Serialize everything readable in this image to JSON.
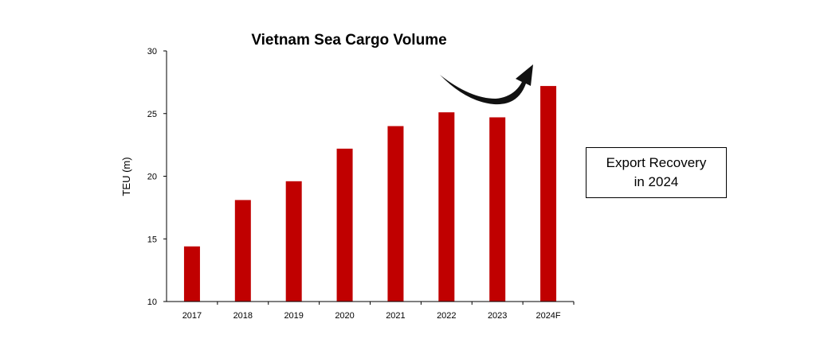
{
  "chart_data": {
    "type": "bar",
    "title": "Vietnam Sea Cargo Volume",
    "xlabel": "",
    "ylabel": "TEU (m)",
    "categories": [
      "2017",
      "2018",
      "2019",
      "2020",
      "2021",
      "2022",
      "2023",
      "2024F"
    ],
    "values": [
      14.4,
      18.1,
      19.6,
      22.2,
      24.0,
      25.1,
      24.7,
      27.2
    ],
    "ylim": [
      10,
      30
    ],
    "yticks": [
      "10",
      "15",
      "20",
      "25",
      "30"
    ],
    "bar_color": "#C00000",
    "grid": false,
    "legend": "none"
  },
  "annotation": {
    "line1": "Export Recovery",
    "line2": "in 2024",
    "arrow": "curved-up-arrow-icon"
  }
}
